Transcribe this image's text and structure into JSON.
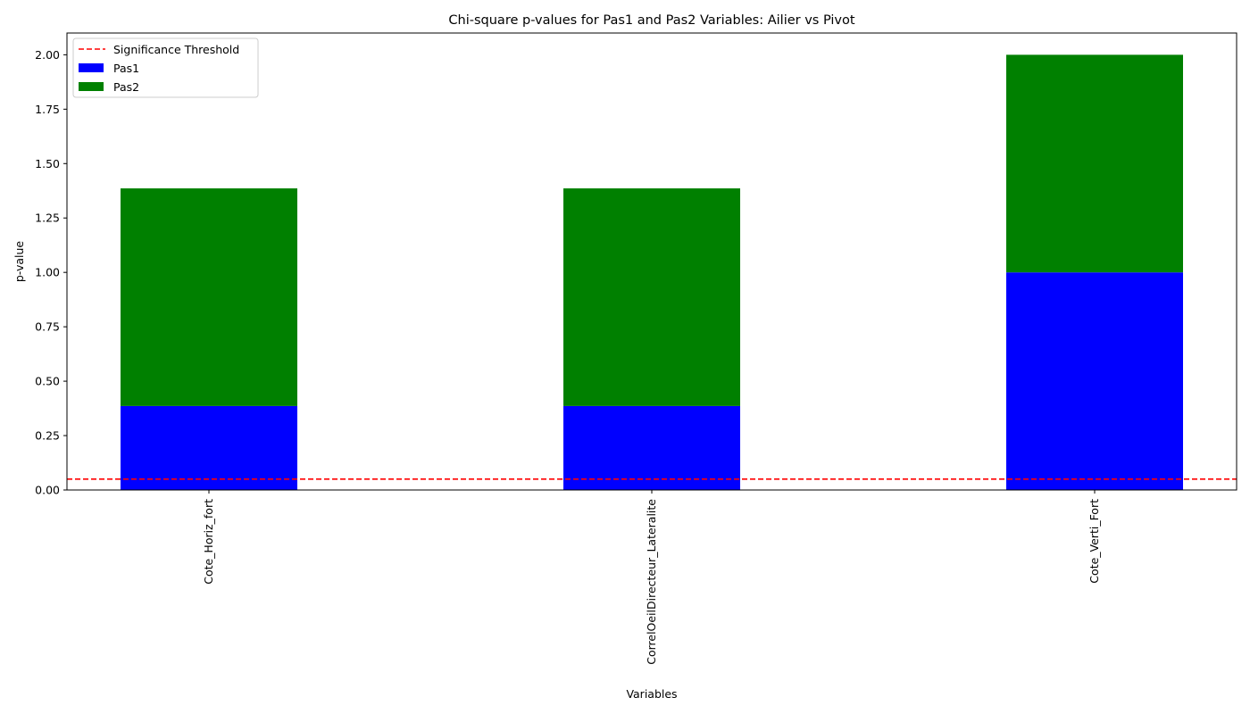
{
  "chart_data": {
    "type": "bar",
    "stacked": true,
    "title": "Chi-square p-values for Pas1 and Pas2 Variables: Ailier vs Pivot",
    "xlabel": "Variables",
    "ylabel": "p-value",
    "ylim": [
      0,
      2.1
    ],
    "yticks": [
      "0.00",
      "0.25",
      "0.50",
      "0.75",
      "1.00",
      "1.25",
      "1.50",
      "1.75",
      "2.00"
    ],
    "categories": [
      "Cote_Horiz_fort",
      "CorrelOeilDirecteur_Lateralite",
      "Cote_Verti_Fort"
    ],
    "series": [
      {
        "name": "Pas1",
        "color": "#0000ff",
        "values": [
          0.386,
          0.386,
          1.0
        ]
      },
      {
        "name": "Pas2",
        "color": "#008000",
        "values": [
          1.0,
          1.0,
          1.0
        ]
      }
    ],
    "threshold": {
      "name": "Significance Threshold",
      "value": 0.05,
      "color": "#ff0000",
      "style": "dashed"
    },
    "legend": {
      "position": "top-left"
    },
    "grid": false
  }
}
